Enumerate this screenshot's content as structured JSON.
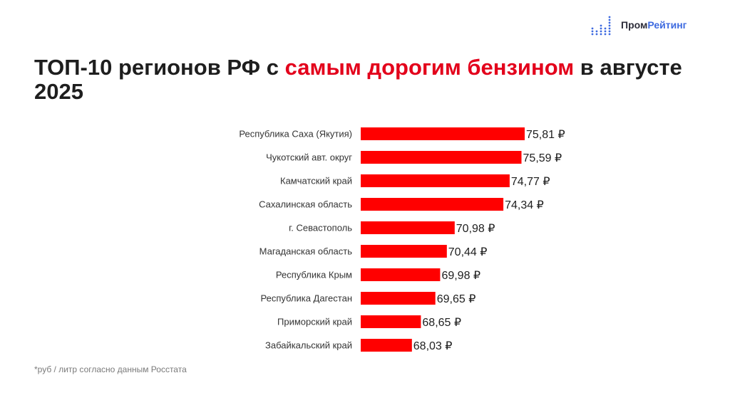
{
  "brand": {
    "name_part1": "Пром",
    "name_part2": "Рейтинг",
    "accent_color": "#3d6ae0"
  },
  "title": {
    "part1": "ТОП-10 регионов РФ с ",
    "highlight": "самым дорогим бензином",
    "part2": " в августе 2025"
  },
  "colors": {
    "bar": "#ff0000",
    "title_accent": "#e3001b"
  },
  "chart_data": {
    "type": "bar",
    "orientation": "horizontal",
    "title": "ТОП-10 регионов РФ с самым дорогим бензином в августе 2025",
    "categories": [
      "Республика Саха (Якутия)",
      "Чукотский авт. округ",
      "Камчатский край",
      "Сахалинская область",
      "г. Севастополь",
      "Магаданская область",
      "Республика Крым",
      "Республика Дагестан",
      "Приморский край",
      "Забайкальский край"
    ],
    "values": [
      75.81,
      75.59,
      74.77,
      74.34,
      70.98,
      70.44,
      69.98,
      69.65,
      68.65,
      68.03
    ],
    "value_labels": [
      "75,81 ₽",
      "75,59 ₽",
      "74,77 ₽",
      "74,34 ₽",
      "70,98 ₽",
      "70,44 ₽",
      "69,98 ₽",
      "69,65 ₽",
      "68,65 ₽",
      "68,03 ₽"
    ],
    "xlim": [
      64.5,
      75.81
    ],
    "grid": false,
    "legend": "none"
  },
  "footnote": "*руб / литр согласно данным Росстата"
}
